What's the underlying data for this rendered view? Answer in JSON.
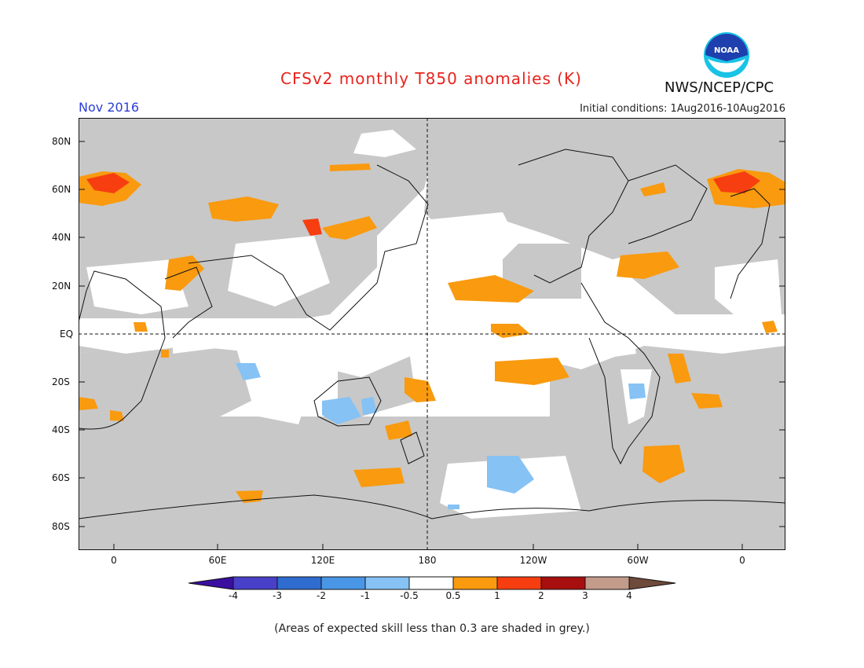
{
  "header": {
    "title": "CFSv2 monthly T850 anomalies (K)",
    "valid_period": "Nov 2016",
    "initial_conditions": "Initial conditions: 1Aug2016-10Aug2016",
    "agency": "NWS/NCEP/CPC",
    "logo_text": "NOAA",
    "logo_icon": "noaa-logo-icon"
  },
  "map": {
    "projection": "equirectangular",
    "lon_range": [
      "20W",
      "20E"
    ],
    "lat_range": [
      "90S",
      "90N"
    ],
    "lat_labels": [
      "80N",
      "60N",
      "40N",
      "20N",
      "EQ",
      "20S",
      "40S",
      "60S",
      "80S"
    ],
    "lon_labels": [
      "0",
      "60E",
      "120E",
      "180",
      "120W",
      "60W",
      "0"
    ],
    "reference_lines": [
      "EQ",
      "180"
    ],
    "low_skill_shading": "grey"
  },
  "colorbar": {
    "labels": [
      "-4",
      "-3",
      "-2",
      "-1",
      "-0.5",
      "0.5",
      "1",
      "2",
      "3",
      "4"
    ],
    "colors": [
      "#3a0ea0",
      "#4840c8",
      "#2f6cd0",
      "#4a96e6",
      "#86c2f4",
      "#ffffff",
      "#f99a0f",
      "#f73e10",
      "#a70e0e",
      "#c29b8b",
      "#6e4a3a"
    ]
  },
  "colors": {
    "land_low_skill": "#c8c8c8",
    "warm_05_1": "#f99a0f",
    "warm_1_2": "#f73e10",
    "cool_05_1": "#86c2f4",
    "title": "#e8231c",
    "valid_label": "#2b3ed6"
  },
  "footnote": "(Areas of expected skill less than 0.3 are shaded in grey.)"
}
